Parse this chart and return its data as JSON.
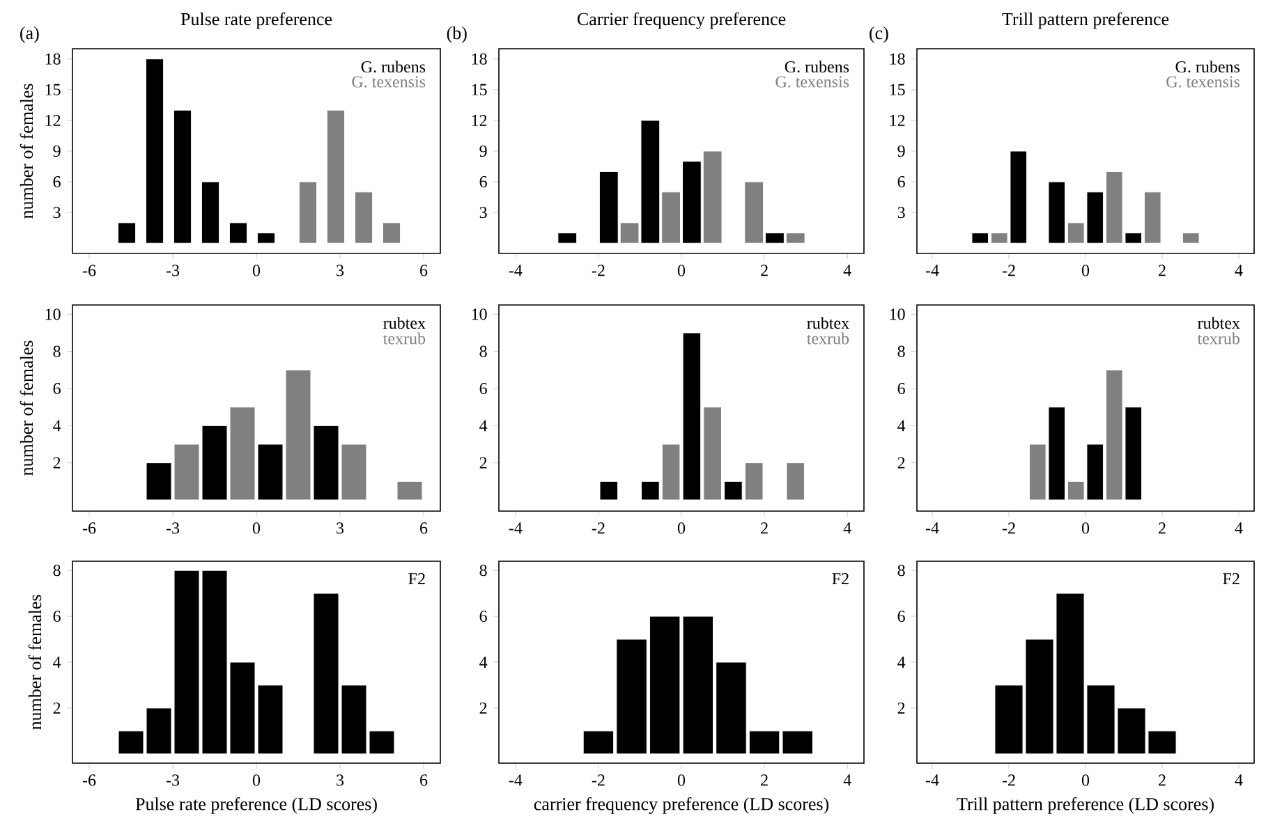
{
  "chart_data": [
    {
      "type": "bar",
      "title": "Pulse rate preference",
      "annotations": [
        "(a)"
      ],
      "ylabel": "number of females",
      "legend": "top right",
      "xlim": [
        -6.6,
        6.6
      ],
      "xticks": [
        -6,
        -3,
        0,
        3,
        6
      ],
      "ylim": [
        -1,
        19
      ],
      "yticks": [
        3,
        6,
        9,
        12,
        15,
        18
      ],
      "series": [
        {
          "name": "G. rubens",
          "color": "#000000",
          "x": [
            -4.65,
            -3.65,
            -2.65,
            -1.65,
            -0.65,
            0.35
          ],
          "values": [
            2,
            18,
            13,
            6,
            2,
            1
          ]
        },
        {
          "name": "G. texensis",
          "color": "#808080",
          "x": [
            1.85,
            2.85,
            3.85,
            4.85
          ],
          "values": [
            6,
            13,
            5,
            2
          ]
        }
      ]
    },
    {
      "type": "bar",
      "title": "Carrier frequency preference",
      "annotations": [
        "(b)"
      ],
      "legend": "top right",
      "xlim": [
        -4.4,
        4.4
      ],
      "xticks": [
        -4,
        -2,
        0,
        2,
        4
      ],
      "ylim": [
        -1,
        19
      ],
      "yticks": [
        3,
        6,
        9,
        12,
        15,
        18
      ],
      "series": [
        {
          "name": "G. rubens",
          "color": "#000000",
          "x": [
            -2.75,
            -1.75,
            -0.75,
            0.25,
            2.25
          ],
          "values": [
            1,
            7,
            12,
            8,
            1
          ]
        },
        {
          "name": "G. texensis",
          "color": "#808080",
          "x": [
            -1.25,
            -0.25,
            0.75,
            1.75,
            2.75
          ],
          "values": [
            2,
            5,
            9,
            6,
            1
          ]
        }
      ]
    },
    {
      "type": "bar",
      "title": "Trill pattern preference",
      "annotations": [
        "(c)"
      ],
      "legend": "top right",
      "xlim": [
        -4.4,
        4.4
      ],
      "xticks": [
        -4,
        -2,
        0,
        2,
        4
      ],
      "ylim": [
        -1,
        19
      ],
      "yticks": [
        3,
        6,
        9,
        12,
        15,
        18
      ],
      "series": [
        {
          "name": "G. rubens",
          "color": "#000000",
          "x": [
            -2.75,
            -1.75,
            -0.75,
            0.25,
            1.25
          ],
          "values": [
            1,
            9,
            6,
            5,
            1
          ]
        },
        {
          "name": "G. texensis",
          "color": "#808080",
          "x": [
            -2.25,
            -0.25,
            0.75,
            1.75,
            2.75
          ],
          "values": [
            1,
            2,
            7,
            5,
            1
          ]
        }
      ]
    },
    {
      "type": "bar",
      "ylabel": "number of females",
      "legend": "top right",
      "xlim": [
        -6.6,
        6.6
      ],
      "xticks": [
        -6,
        -3,
        0,
        3,
        6
      ],
      "ylim": [
        -0.6,
        10.5
      ],
      "yticks": [
        2,
        4,
        6,
        8,
        10
      ],
      "series": [
        {
          "name": "rubtex",
          "color": "#000000",
          "x": [
            -3.5,
            -1.5,
            0.5,
            2.5
          ],
          "values": [
            2,
            4,
            3,
            4
          ]
        },
        {
          "name": "texrub",
          "color": "#808080",
          "x": [
            -2.5,
            -0.5,
            1.5,
            3.5,
            5.5
          ],
          "values": [
            3,
            5,
            7,
            3,
            1
          ]
        }
      ]
    },
    {
      "type": "bar",
      "legend": "top right",
      "xlim": [
        -4.4,
        4.4
      ],
      "xticks": [
        -4,
        -2,
        0,
        2,
        4
      ],
      "ylim": [
        -0.6,
        10.5
      ],
      "yticks": [
        2,
        4,
        6,
        8,
        10
      ],
      "series": [
        {
          "name": "rubtex",
          "color": "#000000",
          "x": [
            -1.75,
            -0.75,
            0.25,
            1.25
          ],
          "values": [
            1,
            1,
            9,
            1
          ]
        },
        {
          "name": "texrub",
          "color": "#808080",
          "x": [
            -0.25,
            0.75,
            1.75,
            2.75
          ],
          "values": [
            3,
            5,
            2,
            2
          ]
        }
      ]
    },
    {
      "type": "bar",
      "legend": "top right",
      "xlim": [
        -4.4,
        4.4
      ],
      "xticks": [
        -4,
        -2,
        0,
        2,
        4
      ],
      "ylim": [
        -0.6,
        10.5
      ],
      "yticks": [
        2,
        4,
        6,
        8,
        10
      ],
      "series": [
        {
          "name": "rubtex",
          "color": "#000000",
          "x": [
            -0.75,
            0.25,
            1.25
          ],
          "values": [
            5,
            3,
            5
          ]
        },
        {
          "name": "texrub",
          "color": "#808080",
          "x": [
            -1.25,
            -0.25,
            0.75
          ],
          "values": [
            3,
            1,
            7
          ]
        }
      ]
    },
    {
      "type": "bar",
      "ylabel": "number of females",
      "xlabel": "Pulse rate preference (LD scores)",
      "legend": "top right",
      "xlim": [
        -6.6,
        6.6
      ],
      "xticks": [
        -6,
        -3,
        0,
        3,
        6
      ],
      "ylim": [
        -0.4,
        8.4
      ],
      "yticks": [
        2,
        4,
        6,
        8
      ],
      "series": [
        {
          "name": "F2",
          "color": "#000000",
          "x": [
            -4.5,
            -3.5,
            -2.5,
            -1.5,
            -0.5,
            0.5,
            2.5,
            3.5,
            4.5
          ],
          "values": [
            1,
            2,
            8,
            8,
            4,
            3,
            7,
            3,
            1
          ]
        }
      ]
    },
    {
      "type": "bar",
      "xlabel": "carrier frequency preference (LD scores)",
      "legend": "top right",
      "xlim": [
        -4.4,
        4.4
      ],
      "xticks": [
        -4,
        -2,
        0,
        2,
        4
      ],
      "ylim": [
        -0.4,
        8.4
      ],
      "yticks": [
        2,
        4,
        6,
        8
      ],
      "series": [
        {
          "name": "F2",
          "color": "#000000",
          "x": [
            -2.0,
            -1.2,
            -0.4,
            0.4,
            1.2,
            2.0,
            2.8
          ],
          "values": [
            1,
            5,
            6,
            6,
            4,
            1,
            1
          ]
        }
      ]
    },
    {
      "type": "bar",
      "xlabel": "Trill pattern preference (LD scores)",
      "legend": "top right",
      "xlim": [
        -4.4,
        4.4
      ],
      "xticks": [
        -4,
        -2,
        0,
        2,
        4
      ],
      "ylim": [
        -0.4,
        8.4
      ],
      "yticks": [
        2,
        4,
        6,
        8
      ],
      "series": [
        {
          "name": "F2",
          "color": "#000000",
          "x": [
            -2.0,
            -1.2,
            -0.4,
            0.4,
            1.2,
            2.0
          ],
          "values": [
            3,
            5,
            7,
            3,
            2,
            1
          ]
        }
      ]
    }
  ]
}
